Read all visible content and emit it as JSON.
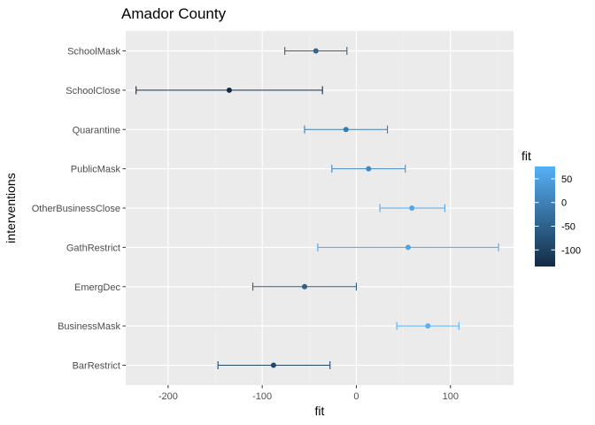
{
  "chart_data": {
    "type": "scatter",
    "title": "Amador County",
    "xlabel": "fit",
    "ylabel": "interventions",
    "xlim": [
      -245,
      167
    ],
    "x_ticks": [
      -200,
      -100,
      0,
      100
    ],
    "x_tick_labels": [
      "-200",
      "-100",
      "0",
      "100"
    ],
    "grid": true,
    "legend_placement": "right",
    "legend": {
      "title": "fit",
      "color_range": [
        -135,
        76
      ],
      "ticks": [
        50,
        0,
        -50,
        -100
      ],
      "tick_labels": [
        "50",
        "0",
        "-50",
        "-100"
      ],
      "low_color": "#132B43",
      "high_color": "#56B1F7"
    },
    "categories": [
      "SchoolMask",
      "SchoolClose",
      "Quarantine",
      "PublicMask",
      "OtherBusinessClose",
      "GathRestrict",
      "EmergDec",
      "BusinessMask",
      "BarRestrict"
    ],
    "points": [
      {
        "category": "SchoolMask",
        "fit": -43,
        "lower": -76,
        "upper": -10
      },
      {
        "category": "SchoolClose",
        "fit": -135,
        "lower": -234,
        "upper": -36
      },
      {
        "category": "Quarantine",
        "fit": -11,
        "lower": -55,
        "upper": 33
      },
      {
        "category": "PublicMask",
        "fit": 13,
        "lower": -26,
        "upper": 52
      },
      {
        "category": "OtherBusinessClose",
        "fit": 59,
        "lower": 25,
        "upper": 94
      },
      {
        "category": "GathRestrict",
        "fit": 55,
        "lower": -41,
        "upper": 151
      },
      {
        "category": "EmergDec",
        "fit": -55,
        "lower": -110,
        "upper": 0
      },
      {
        "category": "BusinessMask",
        "fit": 76,
        "lower": 43,
        "upper": 109
      },
      {
        "category": "BarRestrict",
        "fit": -88,
        "lower": -147,
        "upper": -28
      }
    ]
  }
}
